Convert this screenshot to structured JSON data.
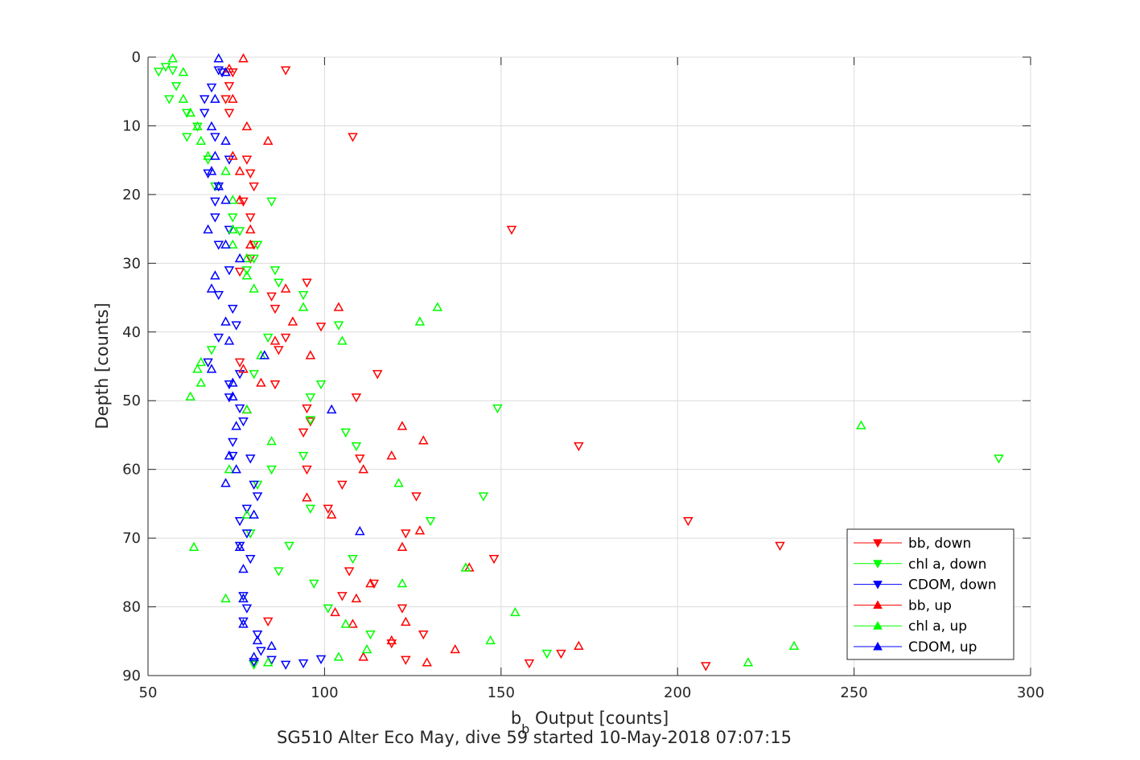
{
  "chart_data": {
    "type": "scatter",
    "title": "SG510 Alter Eco May, dive 59 started 10-May-2018 07:07:15",
    "xlabel_main": "b",
    "xlabel_sub": "b",
    "xlabel_rest": " Output [counts]",
    "ylabel": "Depth [counts]",
    "xlim": [
      50,
      300
    ],
    "ylim": [
      0,
      90
    ],
    "y_reversed": true,
    "grid": true,
    "legend_position": "bottom-right",
    "x_ticks": [
      "50",
      "100",
      "150",
      "200",
      "250",
      "300"
    ],
    "y_ticks": [
      "0",
      "10",
      "20",
      "30",
      "40",
      "50",
      "60",
      "70",
      "80",
      "90"
    ],
    "series": [
      {
        "name": "bb, down",
        "color": "#ff0000",
        "marker": "triangle-down",
        "points": [
          [
            89,
            1.9
          ],
          [
            74,
            2.2
          ],
          [
            73,
            4.2
          ],
          [
            72,
            6.1
          ],
          [
            73,
            8.1
          ],
          [
            108,
            11.6
          ],
          [
            78,
            14.9
          ],
          [
            79,
            16.9
          ],
          [
            80,
            18.8
          ],
          [
            77,
            21.0
          ],
          [
            79,
            23.3
          ],
          [
            153,
            25.1
          ],
          [
            80,
            27.3
          ],
          [
            79,
            29.3
          ],
          [
            76,
            31.2
          ],
          [
            95,
            32.8
          ],
          [
            85,
            34.8
          ],
          [
            86,
            36.6
          ],
          [
            99,
            39.2
          ],
          [
            89,
            40.8
          ],
          [
            87,
            42.6
          ],
          [
            76,
            44.4
          ],
          [
            115,
            46.1
          ],
          [
            86,
            47.6
          ],
          [
            109,
            49.5
          ],
          [
            95,
            51.1
          ],
          [
            96,
            53.0
          ],
          [
            94,
            54.6
          ],
          [
            172,
            56.6
          ],
          [
            110,
            58.4
          ],
          [
            95,
            60.0
          ],
          [
            105,
            62.2
          ],
          [
            126,
            63.9
          ],
          [
            101,
            65.7
          ],
          [
            203,
            67.5
          ],
          [
            123,
            69.3
          ],
          [
            229,
            71.1
          ],
          [
            148,
            73.0
          ],
          [
            107,
            74.8
          ],
          [
            114,
            76.6
          ],
          [
            105,
            78.4
          ],
          [
            122,
            80.2
          ],
          [
            84,
            82.1
          ],
          [
            128,
            84.0
          ],
          [
            119,
            85.3
          ],
          [
            167,
            86.8
          ],
          [
            123,
            87.7
          ],
          [
            158,
            88.2
          ],
          [
            208,
            88.6
          ]
        ]
      },
      {
        "name": "chl a, down",
        "color": "#00ff00",
        "marker": "triangle-down",
        "points": [
          [
            55,
            1.4
          ],
          [
            57,
            1.9
          ],
          [
            53,
            2.1
          ],
          [
            58,
            4.2
          ],
          [
            56,
            6.1
          ],
          [
            61,
            8.1
          ],
          [
            64,
            10.1
          ],
          [
            61,
            11.6
          ],
          [
            67,
            14.9
          ],
          [
            69,
            18.8
          ],
          [
            85,
            21.0
          ],
          [
            74,
            23.3
          ],
          [
            76,
            25.3
          ],
          [
            81,
            27.3
          ],
          [
            80,
            29.3
          ],
          [
            78,
            31.0
          ],
          [
            86,
            31.0
          ],
          [
            87,
            32.8
          ],
          [
            94,
            34.6
          ],
          [
            84,
            40.8
          ],
          [
            68,
            42.6
          ],
          [
            80,
            46.1
          ],
          [
            99,
            47.6
          ],
          [
            96,
            49.5
          ],
          [
            104,
            39.0
          ],
          [
            149,
            51.1
          ],
          [
            96,
            52.8
          ],
          [
            106,
            54.6
          ],
          [
            109,
            56.6
          ],
          [
            94,
            58.0
          ],
          [
            85,
            60.0
          ],
          [
            81,
            62.2
          ],
          [
            145,
            63.9
          ],
          [
            96,
            65.7
          ],
          [
            130,
            67.5
          ],
          [
            79,
            69.3
          ],
          [
            90,
            71.1
          ],
          [
            108,
            73.0
          ],
          [
            87,
            74.8
          ],
          [
            97,
            76.6
          ],
          [
            101,
            80.2
          ],
          [
            113,
            84.0
          ],
          [
            163,
            86.8
          ],
          [
            291,
            58.4
          ],
          [
            80,
            88.4
          ]
        ]
      },
      {
        "name": "CDOM, down",
        "color": "#0000ff",
        "marker": "triangle-down",
        "points": [
          [
            70,
            1.9
          ],
          [
            71,
            2.2
          ],
          [
            68,
            4.4
          ],
          [
            66,
            6.1
          ],
          [
            66,
            8.1
          ],
          [
            69,
            11.6
          ],
          [
            73,
            14.9
          ],
          [
            67,
            16.9
          ],
          [
            70,
            18.8
          ],
          [
            69,
            21.0
          ],
          [
            69,
            23.3
          ],
          [
            73,
            25.1
          ],
          [
            70,
            27.3
          ],
          [
            73,
            31.0
          ],
          [
            70,
            34.6
          ],
          [
            74,
            36.6
          ],
          [
            75,
            39.0
          ],
          [
            70,
            40.8
          ],
          [
            67,
            44.4
          ],
          [
            76,
            46.1
          ],
          [
            73,
            47.6
          ],
          [
            73,
            49.5
          ],
          [
            76,
            51.1
          ],
          [
            77,
            53.0
          ],
          [
            74,
            56.0
          ],
          [
            74,
            58.0
          ],
          [
            79,
            58.4
          ],
          [
            80,
            62.2
          ],
          [
            81,
            63.9
          ],
          [
            78,
            65.7
          ],
          [
            76,
            67.5
          ],
          [
            78,
            69.3
          ],
          [
            76,
            71.1
          ],
          [
            79,
            73.0
          ],
          [
            77,
            78.4
          ],
          [
            78,
            80.2
          ],
          [
            77,
            82.1
          ],
          [
            81,
            84.0
          ],
          [
            82,
            86.4
          ],
          [
            85,
            87.7
          ],
          [
            89,
            88.4
          ],
          [
            94,
            88.2
          ],
          [
            99,
            87.6
          ],
          [
            80,
            88.0
          ]
        ]
      },
      {
        "name": "bb, up",
        "color": "#ff0000",
        "marker": "triangle-up",
        "points": [
          [
            77,
            0.2
          ],
          [
            73,
            1.7
          ],
          [
            74,
            6.1
          ],
          [
            78,
            10.1
          ],
          [
            84,
            12.2
          ],
          [
            74,
            14.4
          ],
          [
            76,
            16.6
          ],
          [
            76,
            20.8
          ],
          [
            79,
            25.1
          ],
          [
            79,
            27.3
          ],
          [
            89,
            33.7
          ],
          [
            104,
            36.4
          ],
          [
            91,
            38.5
          ],
          [
            86,
            41.3
          ],
          [
            96,
            43.4
          ],
          [
            77,
            45.4
          ],
          [
            82,
            47.4
          ],
          [
            78,
            51.3
          ],
          [
            122,
            53.7
          ],
          [
            128,
            55.8
          ],
          [
            119,
            58.0
          ],
          [
            111,
            60.0
          ],
          [
            95,
            64.1
          ],
          [
            102,
            66.6
          ],
          [
            127,
            68.9
          ],
          [
            122,
            71.3
          ],
          [
            141,
            74.3
          ],
          [
            113,
            76.6
          ],
          [
            109,
            78.8
          ],
          [
            103,
            80.8
          ],
          [
            108,
            82.5
          ],
          [
            123,
            82.2
          ],
          [
            119,
            84.9
          ],
          [
            137,
            86.2
          ],
          [
            172,
            85.7
          ],
          [
            129,
            88.1
          ],
          [
            111,
            87.3
          ]
        ]
      },
      {
        "name": "chl a, up",
        "color": "#00ff00",
        "marker": "triangle-up",
        "points": [
          [
            57,
            0.2
          ],
          [
            60,
            2.2
          ],
          [
            60,
            6.1
          ],
          [
            62,
            8.1
          ],
          [
            64,
            10.1
          ],
          [
            65,
            12.2
          ],
          [
            67,
            14.4
          ],
          [
            72,
            16.6
          ],
          [
            74,
            20.8
          ],
          [
            74,
            25.1
          ],
          [
            74,
            27.3
          ],
          [
            78,
            29.3
          ],
          [
            78,
            31.8
          ],
          [
            80,
            33.7
          ],
          [
            94,
            36.4
          ],
          [
            132,
            36.4
          ],
          [
            127,
            38.5
          ],
          [
            105,
            41.3
          ],
          [
            82,
            43.4
          ],
          [
            65,
            44.4
          ],
          [
            64,
            45.4
          ],
          [
            65,
            47.4
          ],
          [
            62,
            49.4
          ],
          [
            78,
            51.3
          ],
          [
            85,
            55.9
          ],
          [
            252,
            53.6
          ],
          [
            121,
            62.0
          ],
          [
            73,
            60.0
          ],
          [
            78,
            66.6
          ],
          [
            63,
            71.3
          ],
          [
            140,
            74.3
          ],
          [
            122,
            76.6
          ],
          [
            72,
            78.8
          ],
          [
            154,
            80.8
          ],
          [
            106,
            82.5
          ],
          [
            147,
            84.9
          ],
          [
            112,
            86.2
          ],
          [
            233,
            85.7
          ],
          [
            104,
            87.3
          ],
          [
            220,
            88.1
          ],
          [
            84,
            88.1
          ],
          [
            77,
            78.8
          ]
        ]
      },
      {
        "name": "CDOM, up",
        "color": "#0000ff",
        "marker": "triangle-up",
        "points": [
          [
            70,
            0.2
          ],
          [
            72,
            2.2
          ],
          [
            69,
            6.1
          ],
          [
            68,
            10.1
          ],
          [
            72,
            12.2
          ],
          [
            69,
            14.4
          ],
          [
            68,
            16.6
          ],
          [
            70,
            18.8
          ],
          [
            72,
            20.8
          ],
          [
            67,
            25.1
          ],
          [
            72,
            27.3
          ],
          [
            76,
            29.3
          ],
          [
            69,
            31.8
          ],
          [
            68,
            33.7
          ],
          [
            72,
            38.5
          ],
          [
            73,
            41.3
          ],
          [
            83,
            43.4
          ],
          [
            68,
            45.4
          ],
          [
            74,
            47.4
          ],
          [
            74,
            49.4
          ],
          [
            102,
            51.3
          ],
          [
            75,
            53.7
          ],
          [
            73,
            58.0
          ],
          [
            75,
            60.0
          ],
          [
            72,
            62.0
          ],
          [
            80,
            66.6
          ],
          [
            110,
            69.0
          ],
          [
            76,
            71.3
          ],
          [
            77,
            74.5
          ],
          [
            77,
            78.8
          ],
          [
            77,
            82.5
          ],
          [
            81,
            84.9
          ],
          [
            85,
            85.7
          ],
          [
            80,
            87.3
          ]
        ]
      }
    ]
  }
}
